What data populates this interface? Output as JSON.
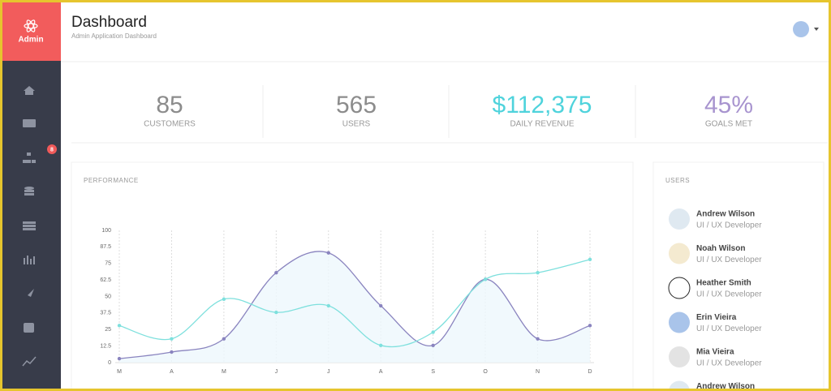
{
  "sidebar": {
    "brand": "Admin",
    "badge": "8"
  },
  "header": {
    "title": "Dashboard",
    "subtitle": "Admin Application Dashboard"
  },
  "stats": [
    {
      "value": "85",
      "label": "CUSTOMERS",
      "color": "#8c8c8c"
    },
    {
      "value": "565",
      "label": "USERS",
      "color": "#8c8c8c"
    },
    {
      "value": "$112,375",
      "label": "DAILY REVENUE",
      "color": "#4fd3dc"
    },
    {
      "value": "45%",
      "label": "GOALS MET",
      "color": "#a894cf"
    }
  ],
  "chart_data": {
    "type": "line",
    "title": "PERFORMANCE",
    "categories": [
      "M",
      "A",
      "M",
      "J",
      "J",
      "A",
      "S",
      "O",
      "N",
      "D"
    ],
    "series": [
      {
        "color": "#8a84bf",
        "values": [
          3,
          8,
          18,
          68,
          83,
          43,
          13,
          63,
          18,
          28
        ]
      },
      {
        "color": "#7ee0dd",
        "values": [
          28,
          18,
          48,
          38,
          43,
          13,
          23,
          63,
          68,
          78
        ]
      }
    ],
    "ylim": [
      0,
      100
    ],
    "yticks": [
      0,
      12.5,
      25,
      37.5,
      50,
      62.5,
      75,
      87.5,
      100
    ],
    "xgrid": true,
    "smooth": true
  },
  "users": {
    "title": "USERS",
    "items": [
      {
        "name": "Andrew Wilson",
        "role": "UI / UX Developer"
      },
      {
        "name": "Noah Wilson",
        "role": "UI / UX Developer"
      },
      {
        "name": "Heather Smith",
        "role": "UI / UX Developer"
      },
      {
        "name": "Erin Vieira",
        "role": "UI / UX Developer"
      },
      {
        "name": "Mia Vieira",
        "role": "UI / UX Developer"
      },
      {
        "name": "Andrew Wilson"
      }
    ]
  }
}
